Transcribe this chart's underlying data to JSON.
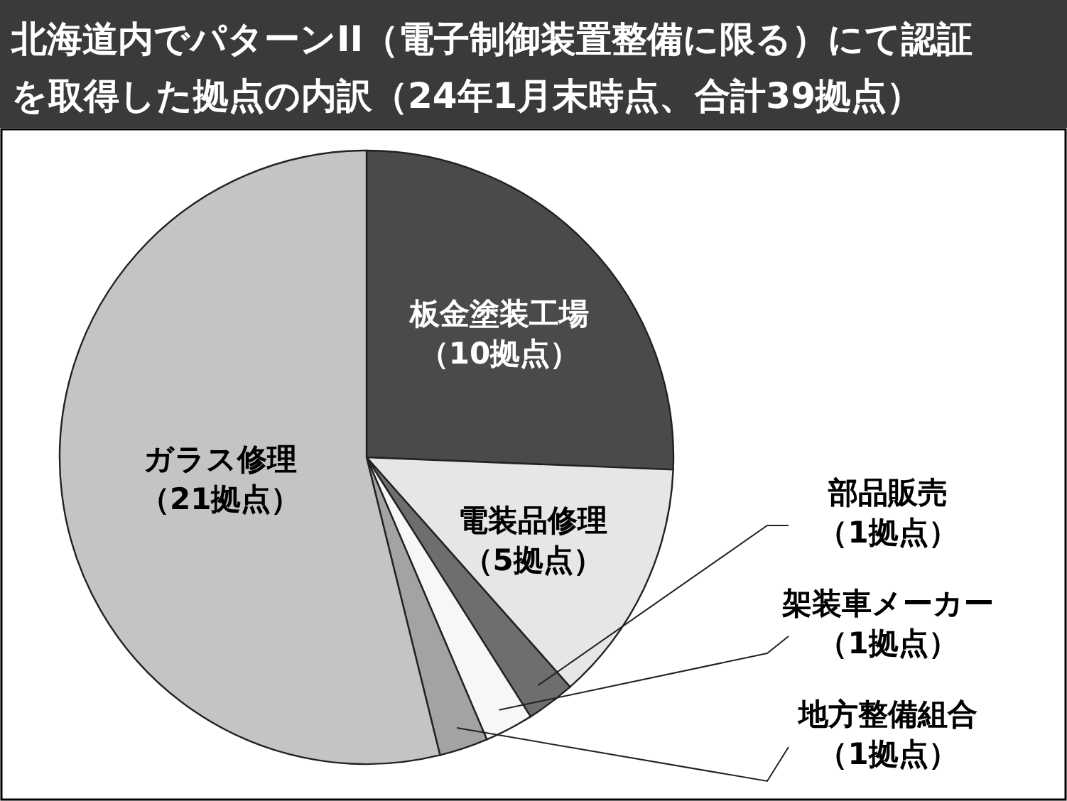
{
  "chart_data": {
    "type": "pie",
    "title": "北海道内でパターンII（電子制御装置整備に限る）にて認証を取得した拠点の内訳（24年1月末時点、合計39拠点）",
    "categories": [
      "板金塗装工場",
      "電装品修理",
      "部品販売",
      "架装車メーカー",
      "地方整備組合",
      "ガラス修理"
    ],
    "values": [
      10,
      5,
      1,
      1,
      1,
      21
    ],
    "value_labels": [
      "（10拠点）",
      "（5拠点）",
      "（1拠点）",
      "（1拠点）",
      "（1拠点）",
      "（21拠点）"
    ],
    "colors": [
      "#4a4a4a",
      "#e6e6e6",
      "#6e6e6e",
      "#f7f7f7",
      "#a3a3a3",
      "#c4c4c4"
    ]
  }
}
